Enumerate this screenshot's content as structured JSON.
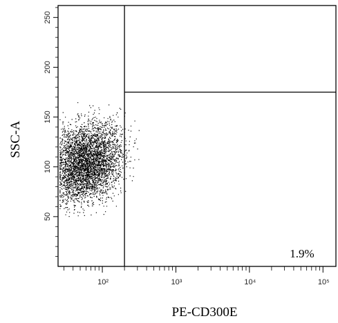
{
  "chart_data": {
    "type": "scatter",
    "title": "",
    "xlabel": "PE-CD300E",
    "ylabel": "SSC-A",
    "xscale": "log",
    "xlim": [
      25,
      150000
    ],
    "ylim": [
      0,
      262
    ],
    "xticks": [
      {
        "value": 100,
        "label": "10²"
      },
      {
        "value": 1000,
        "label": "10³"
      },
      {
        "value": 10000,
        "label": "10⁴"
      },
      {
        "value": 100000,
        "label": "10⁵"
      }
    ],
    "yticks": [
      50,
      100,
      150,
      200,
      250
    ],
    "gate": {
      "x_threshold": 200,
      "y_threshold": 175,
      "label": "1.9%",
      "label_region": "lower-right"
    },
    "population": {
      "description": "dense cluster of events",
      "x_center": 60,
      "x_range": [
        25,
        1000
      ],
      "y_center": 105,
      "y_range": [
        50,
        170
      ],
      "event_count_drawn": 9000
    },
    "grid": false,
    "colors": {
      "points": "#000000",
      "frame": "#000000",
      "background": "#ffffff"
    }
  }
}
